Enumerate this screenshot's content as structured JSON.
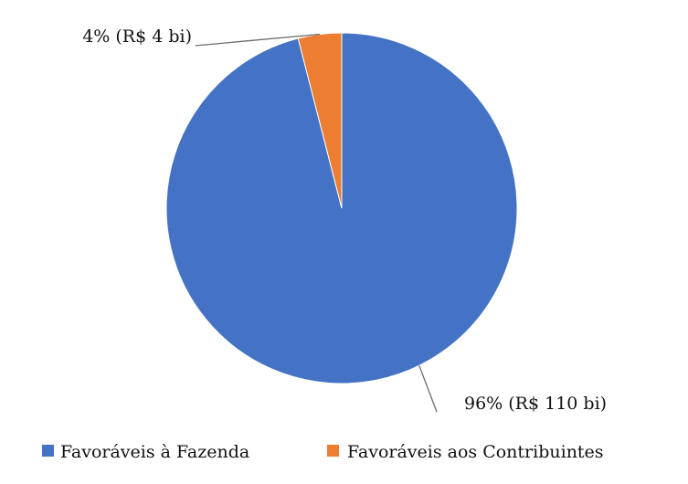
{
  "chart_data": {
    "type": "pie",
    "title": "",
    "slices": [
      {
        "label": "Favoráveis à Fazenda",
        "percent": 96,
        "value_bi": 110,
        "data_label": "96% (R$ 110 bi)",
        "color": "#4472C4"
      },
      {
        "label": "Favoráveis aos Contribuintes",
        "percent": 4,
        "value_bi": 4,
        "data_label": "4% (R$ 4 bi)",
        "color": "#ED7D31"
      }
    ],
    "start_angle": "12 o'clock",
    "direction": "clockwise",
    "legend_placement": "bottom"
  }
}
